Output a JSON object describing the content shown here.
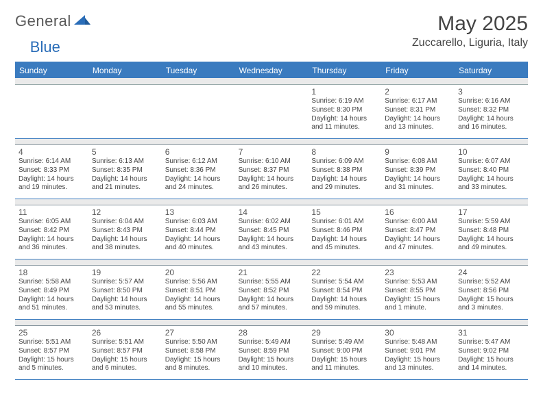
{
  "brand": {
    "general": "General",
    "blue": "Blue"
  },
  "title": "May 2025",
  "location": "Zuccarello, Liguria, Italy",
  "colors": {
    "header_bg": "#3a7bbf",
    "header_text": "#ffffff",
    "divider_bg": "#eaeaea",
    "text": "#3a3a3a"
  },
  "day_names": [
    "Sunday",
    "Monday",
    "Tuesday",
    "Wednesday",
    "Thursday",
    "Friday",
    "Saturday"
  ],
  "weeks": [
    [
      {
        "n": "",
        "lines": []
      },
      {
        "n": "",
        "lines": []
      },
      {
        "n": "",
        "lines": []
      },
      {
        "n": "",
        "lines": []
      },
      {
        "n": "1",
        "lines": [
          "Sunrise: 6:19 AM",
          "Sunset: 8:30 PM",
          "Daylight: 14 hours",
          "and 11 minutes."
        ]
      },
      {
        "n": "2",
        "lines": [
          "Sunrise: 6:17 AM",
          "Sunset: 8:31 PM",
          "Daylight: 14 hours",
          "and 13 minutes."
        ]
      },
      {
        "n": "3",
        "lines": [
          "Sunrise: 6:16 AM",
          "Sunset: 8:32 PM",
          "Daylight: 14 hours",
          "and 16 minutes."
        ]
      }
    ],
    [
      {
        "n": "4",
        "lines": [
          "Sunrise: 6:14 AM",
          "Sunset: 8:33 PM",
          "Daylight: 14 hours",
          "and 19 minutes."
        ]
      },
      {
        "n": "5",
        "lines": [
          "Sunrise: 6:13 AM",
          "Sunset: 8:35 PM",
          "Daylight: 14 hours",
          "and 21 minutes."
        ]
      },
      {
        "n": "6",
        "lines": [
          "Sunrise: 6:12 AM",
          "Sunset: 8:36 PM",
          "Daylight: 14 hours",
          "and 24 minutes."
        ]
      },
      {
        "n": "7",
        "lines": [
          "Sunrise: 6:10 AM",
          "Sunset: 8:37 PM",
          "Daylight: 14 hours",
          "and 26 minutes."
        ]
      },
      {
        "n": "8",
        "lines": [
          "Sunrise: 6:09 AM",
          "Sunset: 8:38 PM",
          "Daylight: 14 hours",
          "and 29 minutes."
        ]
      },
      {
        "n": "9",
        "lines": [
          "Sunrise: 6:08 AM",
          "Sunset: 8:39 PM",
          "Daylight: 14 hours",
          "and 31 minutes."
        ]
      },
      {
        "n": "10",
        "lines": [
          "Sunrise: 6:07 AM",
          "Sunset: 8:40 PM",
          "Daylight: 14 hours",
          "and 33 minutes."
        ]
      }
    ],
    [
      {
        "n": "11",
        "lines": [
          "Sunrise: 6:05 AM",
          "Sunset: 8:42 PM",
          "Daylight: 14 hours",
          "and 36 minutes."
        ]
      },
      {
        "n": "12",
        "lines": [
          "Sunrise: 6:04 AM",
          "Sunset: 8:43 PM",
          "Daylight: 14 hours",
          "and 38 minutes."
        ]
      },
      {
        "n": "13",
        "lines": [
          "Sunrise: 6:03 AM",
          "Sunset: 8:44 PM",
          "Daylight: 14 hours",
          "and 40 minutes."
        ]
      },
      {
        "n": "14",
        "lines": [
          "Sunrise: 6:02 AM",
          "Sunset: 8:45 PM",
          "Daylight: 14 hours",
          "and 43 minutes."
        ]
      },
      {
        "n": "15",
        "lines": [
          "Sunrise: 6:01 AM",
          "Sunset: 8:46 PM",
          "Daylight: 14 hours",
          "and 45 minutes."
        ]
      },
      {
        "n": "16",
        "lines": [
          "Sunrise: 6:00 AM",
          "Sunset: 8:47 PM",
          "Daylight: 14 hours",
          "and 47 minutes."
        ]
      },
      {
        "n": "17",
        "lines": [
          "Sunrise: 5:59 AM",
          "Sunset: 8:48 PM",
          "Daylight: 14 hours",
          "and 49 minutes."
        ]
      }
    ],
    [
      {
        "n": "18",
        "lines": [
          "Sunrise: 5:58 AM",
          "Sunset: 8:49 PM",
          "Daylight: 14 hours",
          "and 51 minutes."
        ]
      },
      {
        "n": "19",
        "lines": [
          "Sunrise: 5:57 AM",
          "Sunset: 8:50 PM",
          "Daylight: 14 hours",
          "and 53 minutes."
        ]
      },
      {
        "n": "20",
        "lines": [
          "Sunrise: 5:56 AM",
          "Sunset: 8:51 PM",
          "Daylight: 14 hours",
          "and 55 minutes."
        ]
      },
      {
        "n": "21",
        "lines": [
          "Sunrise: 5:55 AM",
          "Sunset: 8:52 PM",
          "Daylight: 14 hours",
          "and 57 minutes."
        ]
      },
      {
        "n": "22",
        "lines": [
          "Sunrise: 5:54 AM",
          "Sunset: 8:54 PM",
          "Daylight: 14 hours",
          "and 59 minutes."
        ]
      },
      {
        "n": "23",
        "lines": [
          "Sunrise: 5:53 AM",
          "Sunset: 8:55 PM",
          "Daylight: 15 hours",
          "and 1 minute."
        ]
      },
      {
        "n": "24",
        "lines": [
          "Sunrise: 5:52 AM",
          "Sunset: 8:56 PM",
          "Daylight: 15 hours",
          "and 3 minutes."
        ]
      }
    ],
    [
      {
        "n": "25",
        "lines": [
          "Sunrise: 5:51 AM",
          "Sunset: 8:57 PM",
          "Daylight: 15 hours",
          "and 5 minutes."
        ]
      },
      {
        "n": "26",
        "lines": [
          "Sunrise: 5:51 AM",
          "Sunset: 8:57 PM",
          "Daylight: 15 hours",
          "and 6 minutes."
        ]
      },
      {
        "n": "27",
        "lines": [
          "Sunrise: 5:50 AM",
          "Sunset: 8:58 PM",
          "Daylight: 15 hours",
          "and 8 minutes."
        ]
      },
      {
        "n": "28",
        "lines": [
          "Sunrise: 5:49 AM",
          "Sunset: 8:59 PM",
          "Daylight: 15 hours",
          "and 10 minutes."
        ]
      },
      {
        "n": "29",
        "lines": [
          "Sunrise: 5:49 AM",
          "Sunset: 9:00 PM",
          "Daylight: 15 hours",
          "and 11 minutes."
        ]
      },
      {
        "n": "30",
        "lines": [
          "Sunrise: 5:48 AM",
          "Sunset: 9:01 PM",
          "Daylight: 15 hours",
          "and 13 minutes."
        ]
      },
      {
        "n": "31",
        "lines": [
          "Sunrise: 5:47 AM",
          "Sunset: 9:02 PM",
          "Daylight: 15 hours",
          "and 14 minutes."
        ]
      }
    ]
  ]
}
